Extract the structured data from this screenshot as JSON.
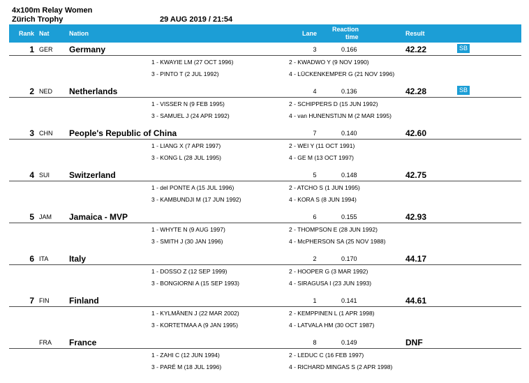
{
  "header": {
    "event": "4x100m Relay Women",
    "meet": "Zürich Trophy",
    "datetime": "29 AUG 2019 / 21:54"
  },
  "columns": {
    "rank": "Rank",
    "nat": "Nat",
    "nation": "Nation",
    "lane": "Lane",
    "reaction_line1": "Reaction",
    "reaction_line2": "time",
    "result": "Result"
  },
  "teams": [
    {
      "rank": "1",
      "nat": "GER",
      "nation": "Germany",
      "lane": "3",
      "reaction": "0.166",
      "result": "42.22",
      "badge": "SB",
      "members": [
        "1 - KWAYIE LM (27 OCT 1996)",
        "2 - KWADWO Y (9 NOV 1990)",
        "3 - PINTO T (2 JUL 1992)",
        "4 - LÜCKENKEMPER G (21 NOV 1996)"
      ]
    },
    {
      "rank": "2",
      "nat": "NED",
      "nation": "Netherlands",
      "lane": "4",
      "reaction": "0.136",
      "result": "42.28",
      "badge": "SB",
      "members": [
        "1 - VISSER N (9 FEB 1995)",
        "2 - SCHIPPERS D (15 JUN 1992)",
        "3 - SAMUEL J (24 APR 1992)",
        "4 - van HUNENSTIJN M (2 MAR 1995)"
      ]
    },
    {
      "rank": "3",
      "nat": "CHN",
      "nation": "People's Republic of China",
      "lane": "7",
      "reaction": "0.140",
      "result": "42.60",
      "badge": "",
      "members": [
        "1 - LIANG X (7 APR 1997)",
        "2 - WEI Y (11 OCT 1991)",
        "3 - KONG L (28 JUL 1995)",
        "4 - GE M (13 OCT 1997)"
      ]
    },
    {
      "rank": "4",
      "nat": "SUI",
      "nation": "Switzerland",
      "lane": "5",
      "reaction": "0.148",
      "result": "42.75",
      "badge": "",
      "members": [
        "1 - del PONTE A (15 JUL 1996)",
        "2 - ATCHO S (1 JUN 1995)",
        "3 - KAMBUNDJI M (17 JUN 1992)",
        "4 - KORA S (8 JUN 1994)"
      ]
    },
    {
      "rank": "5",
      "nat": "JAM",
      "nation": "Jamaica - MVP",
      "lane": "6",
      "reaction": "0.155",
      "result": "42.93",
      "badge": "",
      "members": [
        "1 - WHYTE N (9 AUG 1997)",
        "2 - THOMPSON E (28 JUN 1992)",
        "3 - SMITH J (30 JAN 1996)",
        "4 - McPHERSON SA (25 NOV 1988)"
      ]
    },
    {
      "rank": "6",
      "nat": "ITA",
      "nation": "Italy",
      "lane": "2",
      "reaction": "0.170",
      "result": "44.17",
      "badge": "",
      "members": [
        "1 - DOSSO Z (12 SEP 1999)",
        "2 - HOOPER G (3 MAR 1992)",
        "3 - BONGIORNI A (15 SEP 1993)",
        "4 - SIRAGUSA I (23 JUN 1993)"
      ]
    },
    {
      "rank": "7",
      "nat": "FIN",
      "nation": "Finland",
      "lane": "1",
      "reaction": "0.141",
      "result": "44.61",
      "badge": "",
      "members": [
        "1 - KYLMÄNEN J (22 MAR 2002)",
        "2 - KEMPPINEN L (1 APR 1998)",
        "3 - KORTETMAA A (9 JAN 1995)",
        "4 - LATVALA HM (30 OCT 1987)"
      ]
    },
    {
      "rank": "",
      "nat": "FRA",
      "nation": "France",
      "lane": "8",
      "reaction": "0.149",
      "result": "DNF",
      "badge": "",
      "members": [
        "1 - ZAHI C (12 JUN 1994)",
        "2 - LEDUC C (16 FEB 1997)",
        "3 - PARÉ M (18 JUL 1996)",
        "4 - RICHARD MINGAS S (2 APR 1998)"
      ]
    }
  ]
}
